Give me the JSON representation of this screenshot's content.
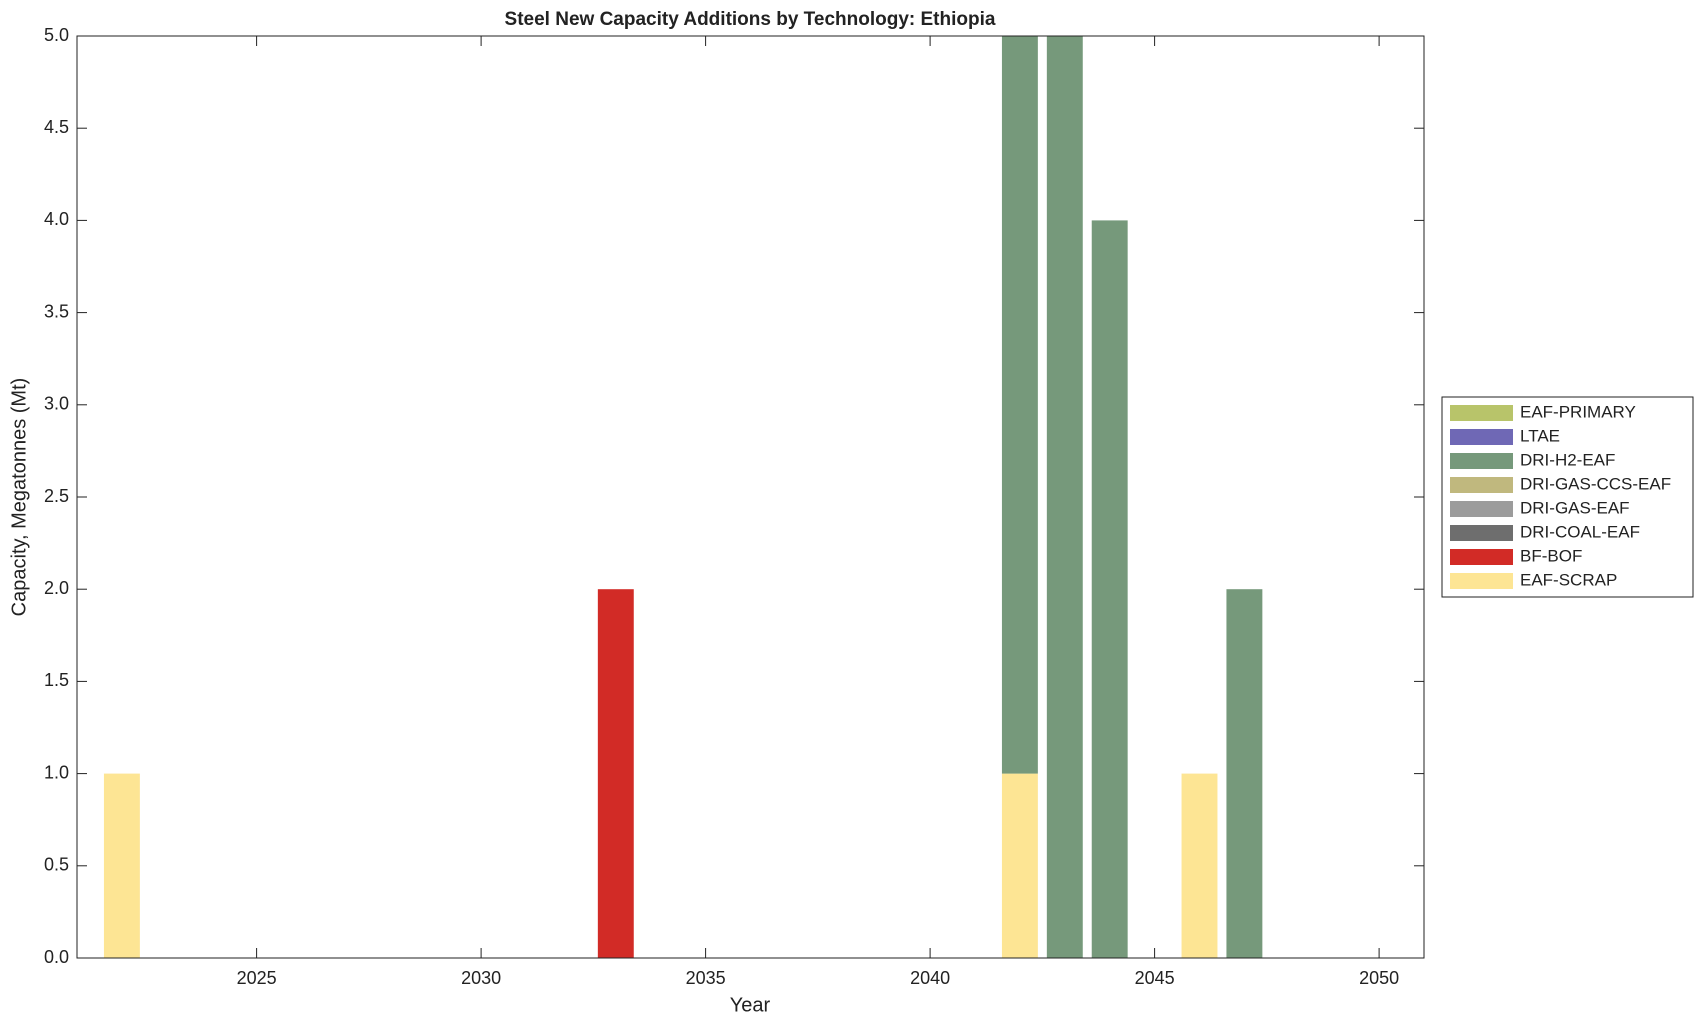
{
  "chart_data": {
    "type": "bar",
    "stacked": true,
    "title": "Steel New Capacity Additions by Technology: Ethiopia",
    "xlabel": "Year",
    "ylabel": "Capacity, Megatonnes (Mt)",
    "x": [
      2022,
      2033,
      2042,
      2043,
      2044,
      2046,
      2047
    ],
    "series": [
      {
        "name": "EAF-PRIMARY",
        "color": "#b8c46a",
        "values": [
          0,
          0,
          0,
          0,
          0,
          0,
          0
        ]
      },
      {
        "name": "LTAE",
        "color": "#6f68b5",
        "values": [
          0,
          0,
          0,
          0,
          0,
          0,
          0
        ]
      },
      {
        "name": "DRI-H2-EAF",
        "color": "#76997b",
        "values": [
          0,
          0,
          4,
          5,
          4,
          0,
          2
        ]
      },
      {
        "name": "DRI-GAS-CCS-EAF",
        "color": "#c0b87e",
        "values": [
          0,
          0,
          0,
          0,
          0,
          0,
          0
        ]
      },
      {
        "name": "DRI-GAS-EAF",
        "color": "#9c9c9c",
        "values": [
          0,
          0,
          0,
          0,
          0,
          0,
          0
        ]
      },
      {
        "name": "DRI-COAL-EAF",
        "color": "#6e6e6e",
        "values": [
          0,
          0,
          0,
          0,
          0,
          0,
          0
        ]
      },
      {
        "name": "BF-BOF",
        "color": "#d22b26",
        "values": [
          0,
          2,
          0,
          0,
          0,
          0,
          0
        ]
      },
      {
        "name": "EAF-SCRAP",
        "color": "#fde594",
        "values": [
          1,
          0,
          1,
          0,
          0,
          1,
          0
        ]
      }
    ],
    "xlim": [
      2021,
      2051
    ],
    "xticks": [
      2025,
      2030,
      2035,
      2040,
      2045,
      2050
    ],
    "ylim": [
      0,
      5
    ],
    "yticks": [
      {
        "value": 0,
        "label": "0.0"
      },
      0.5,
      {
        "value": 1,
        "label": "1.0"
      },
      1.5,
      {
        "value": 2,
        "label": "2.0"
      },
      2.5,
      {
        "value": 3,
        "label": "3.0"
      },
      3.5,
      {
        "value": 4,
        "label": "4.0"
      },
      4.5,
      {
        "value": 5,
        "label": "5.0"
      }
    ],
    "bar_width": 0.8,
    "legend": "outside-right"
  }
}
